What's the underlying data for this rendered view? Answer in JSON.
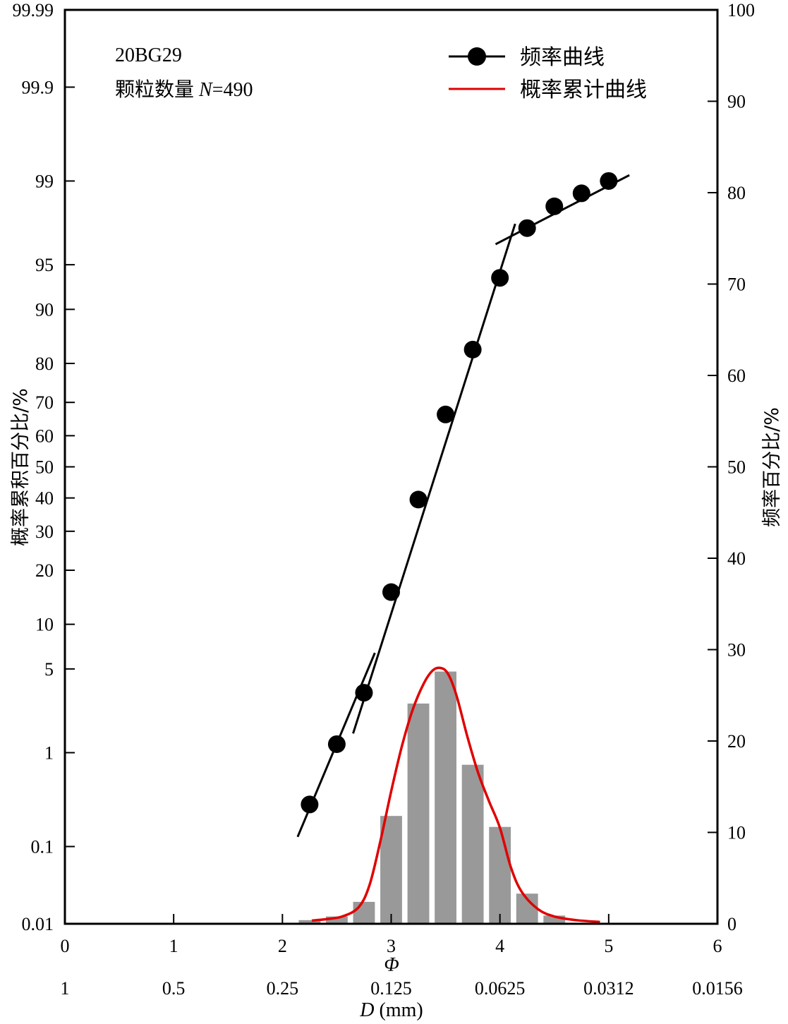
{
  "chart_data": {
    "type": "line",
    "annotation": {
      "sample": "20BG29",
      "count_prefix": "颗粒数量 ",
      "count_var": "N",
      "count_suffix": "=490"
    },
    "legend": {
      "placement": "top-right",
      "entries": [
        {
          "label": "频率曲线",
          "color": "#000000",
          "marker": "circle"
        },
        {
          "label": "概率累计曲线",
          "color": "#e00000",
          "marker": "none"
        }
      ]
    },
    "x_axis": {
      "label": "Φ",
      "range": [
        0,
        6
      ],
      "ticks": [
        0,
        1,
        2,
        3,
        4,
        5,
        6
      ],
      "tick_labels": [
        "0",
        "1",
        "2",
        "3",
        "4",
        "5",
        "6"
      ]
    },
    "x_axis_secondary": {
      "label_var": "D",
      "label_unit": " (mm)",
      "tick_labels": [
        "1",
        "0.5",
        "0.25",
        "0.125",
        "0.0625",
        "0.0312",
        "0.0156"
      ]
    },
    "y_axis_left": {
      "label": "概率累积百分比/%",
      "scale": "probability",
      "range": [
        0.01,
        99.99
      ],
      "ticks": [
        0.01,
        0.1,
        1,
        5,
        10,
        20,
        30,
        40,
        50,
        60,
        70,
        80,
        90,
        95,
        99,
        99.9,
        99.99
      ],
      "tick_labels": [
        "0.01",
        "0.1",
        "1",
        "5",
        "10",
        "20",
        "30",
        "40",
        "50",
        "60",
        "70",
        "80",
        "90",
        "95",
        "99",
        "99.9",
        "99.99"
      ]
    },
    "y_axis_right": {
      "label": "频率百分比/%",
      "scale": "linear",
      "range": [
        0,
        100
      ],
      "ticks": [
        0,
        10,
        20,
        30,
        40,
        50,
        60,
        70,
        80,
        90,
        100
      ],
      "tick_labels": [
        "0",
        "10",
        "20",
        "30",
        "40",
        "50",
        "60",
        "70",
        "80",
        "90",
        "100"
      ]
    },
    "series": [
      {
        "axis": "left",
        "color": "#000000",
        "kind": "points",
        "x": [
          2.25,
          2.5,
          2.75,
          3.0,
          3.25,
          3.5,
          3.75,
          4.0,
          4.25,
          4.5,
          4.75,
          5.0
        ],
        "y": [
          0.3,
          1.2,
          3.3,
          15.4,
          39.5,
          66.5,
          83.0,
          93.8,
          97.4,
          98.3,
          98.7,
          99.0
        ]
      },
      {
        "axis": "left",
        "color": "#000000",
        "kind": "fit-line",
        "segments": [
          {
            "x": [
              2.14,
              2.85
            ],
            "y": [
              0.13,
              6.5
            ]
          },
          {
            "x": [
              2.65,
              4.14
            ],
            "y": [
              1.5,
              97.6
            ]
          },
          {
            "x": [
              3.96,
              5.19
            ],
            "y": [
              96.5,
              99.12
            ]
          }
        ]
      },
      {
        "axis": "right",
        "color": "#999999",
        "kind": "bar",
        "bar_width": 0.2,
        "x": [
          2.25,
          2.5,
          2.75,
          3.0,
          3.25,
          3.5,
          3.75,
          4.0,
          4.25,
          4.5
        ],
        "y": [
          0.4,
          0.8,
          2.4,
          11.8,
          24.1,
          27.6,
          17.4,
          10.6,
          3.3,
          0.9
        ]
      },
      {
        "axis": "right",
        "color": "#e00000",
        "kind": "curve",
        "x": [
          2.27,
          2.4,
          2.55,
          2.7,
          2.8,
          2.9,
          3.0,
          3.1,
          3.2,
          3.3,
          3.38,
          3.45,
          3.52,
          3.6,
          3.7,
          3.8,
          3.9,
          4.0,
          4.1,
          4.2,
          4.35,
          4.5,
          4.7,
          4.92
        ],
        "y": [
          0.35,
          0.5,
          0.8,
          1.8,
          4.2,
          9.0,
          14.5,
          19.5,
          23.5,
          26.3,
          27.7,
          28.0,
          27.4,
          25.0,
          20.5,
          16.5,
          13.4,
          10.5,
          6.2,
          3.5,
          1.6,
          0.8,
          0.4,
          0.2
        ]
      }
    ]
  }
}
